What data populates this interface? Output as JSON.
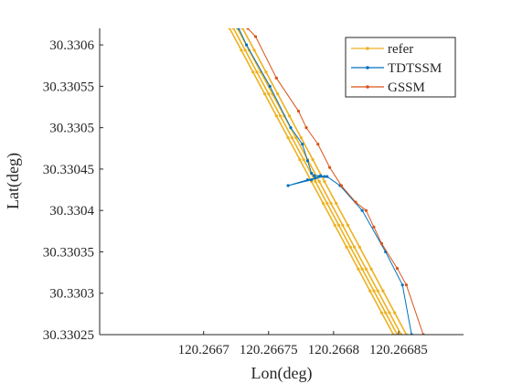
{
  "chart_data": {
    "type": "line",
    "title": "",
    "xlabel": "Lon(deg)",
    "ylabel": "Lat(deg)",
    "xlim": [
      120.26662,
      120.2669
    ],
    "ylim": [
      30.33025,
      30.33062
    ],
    "grid": false,
    "legend_position": "top-right",
    "xticks": [
      120.2667,
      120.26675,
      120.2668,
      120.26685
    ],
    "xtick_labels": [
      "120.2667",
      "120.26675",
      "120.2668",
      "120.26685"
    ],
    "yticks": [
      30.33025,
      30.3303,
      30.33035,
      30.3304,
      30.33045,
      30.3305,
      30.33055,
      30.3306
    ],
    "ytick_labels": [
      "30.33025",
      "30.3303",
      "30.33035",
      "30.3304",
      "30.33045",
      "30.3305",
      "30.33055",
      "30.3306"
    ],
    "series": [
      {
        "name": "refer",
        "color": "#EDB120",
        "marker": "dot",
        "lines": [
          [
            [
              120.26673,
              30.33062
            ],
            [
              120.266856,
              30.33025
            ]
          ],
          [
            [
              120.266726,
              30.33062
            ],
            [
              120.266852,
              30.33025
            ]
          ],
          [
            [
              120.266723,
              30.33062
            ],
            [
              120.266849,
              30.33025
            ]
          ],
          [
            [
              120.26672,
              30.33062
            ],
            [
              120.266846,
              30.33025
            ]
          ]
        ]
      },
      {
        "name": "TDTSSM",
        "color": "#0072BD",
        "marker": "dot",
        "points": [
          [
            120.266727,
            30.33062
          ],
          [
            120.266733,
            30.3306
          ],
          [
            120.266751,
            30.33055
          ],
          [
            120.266767,
            30.3305
          ],
          [
            120.266776,
            30.33048
          ],
          [
            120.26678,
            30.33046
          ],
          [
            120.266783,
            30.330445
          ],
          [
            120.266785,
            30.330442
          ],
          [
            120.26679,
            30.330442
          ],
          [
            120.266793,
            30.330441
          ],
          [
            120.266786,
            30.330439
          ],
          [
            120.26678,
            30.330437
          ],
          [
            120.266765,
            30.33043
          ],
          [
            120.266783,
            30.330437
          ],
          [
            120.266789,
            30.330441
          ],
          [
            120.266795,
            30.330441
          ],
          [
            120.266805,
            30.33043
          ],
          [
            120.266822,
            30.3304
          ],
          [
            120.26684,
            30.33035
          ],
          [
            120.266853,
            30.33031
          ],
          [
            120.26686,
            30.33025
          ]
        ]
      },
      {
        "name": "GSSM",
        "color": "#D95319",
        "marker": "dot",
        "points": [
          [
            120.266734,
            30.33062
          ],
          [
            120.26674,
            30.33061
          ],
          [
            120.266756,
            30.33056
          ],
          [
            120.266773,
            30.33052
          ],
          [
            120.266779,
            30.3305
          ],
          [
            120.266788,
            30.33048
          ],
          [
            120.266797,
            30.330452
          ],
          [
            120.266806,
            30.33043
          ],
          [
            120.266817,
            30.33041
          ],
          [
            120.266825,
            30.3304
          ],
          [
            120.266831,
            30.33038
          ],
          [
            120.266837,
            30.33036
          ],
          [
            120.266849,
            30.33033
          ],
          [
            120.266856,
            30.33031
          ],
          [
            120.266869,
            30.33025
          ]
        ]
      }
    ]
  }
}
